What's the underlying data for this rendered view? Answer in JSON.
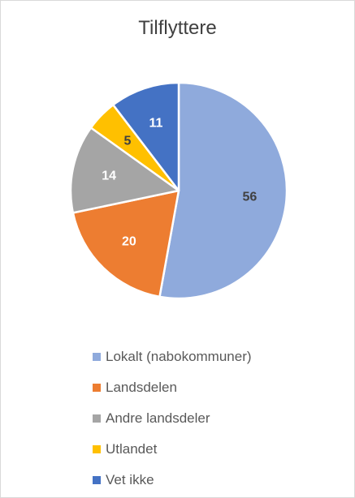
{
  "chart_data": {
    "type": "pie",
    "title": "Tilflyttere",
    "slices": [
      {
        "name": "Lokalt (nabokommuner)",
        "value": 56,
        "color": "#8faadc",
        "label_color": "#404040"
      },
      {
        "name": "Landsdelen",
        "value": 20,
        "color": "#ed7d31",
        "label_color": "#ffffff"
      },
      {
        "name": "Andre landsdeler",
        "value": 14,
        "color": "#a5a5a5",
        "label_color": "#ffffff"
      },
      {
        "name": "Utlandet",
        "value": 5,
        "color": "#ffc000",
        "label_color": "#404040"
      },
      {
        "name": "Vet ikke",
        "value": 11,
        "color": "#4472c4",
        "label_color": "#ffffff"
      }
    ],
    "legend": "bottom",
    "start_angle_deg": 0,
    "direction": "clockwise"
  }
}
